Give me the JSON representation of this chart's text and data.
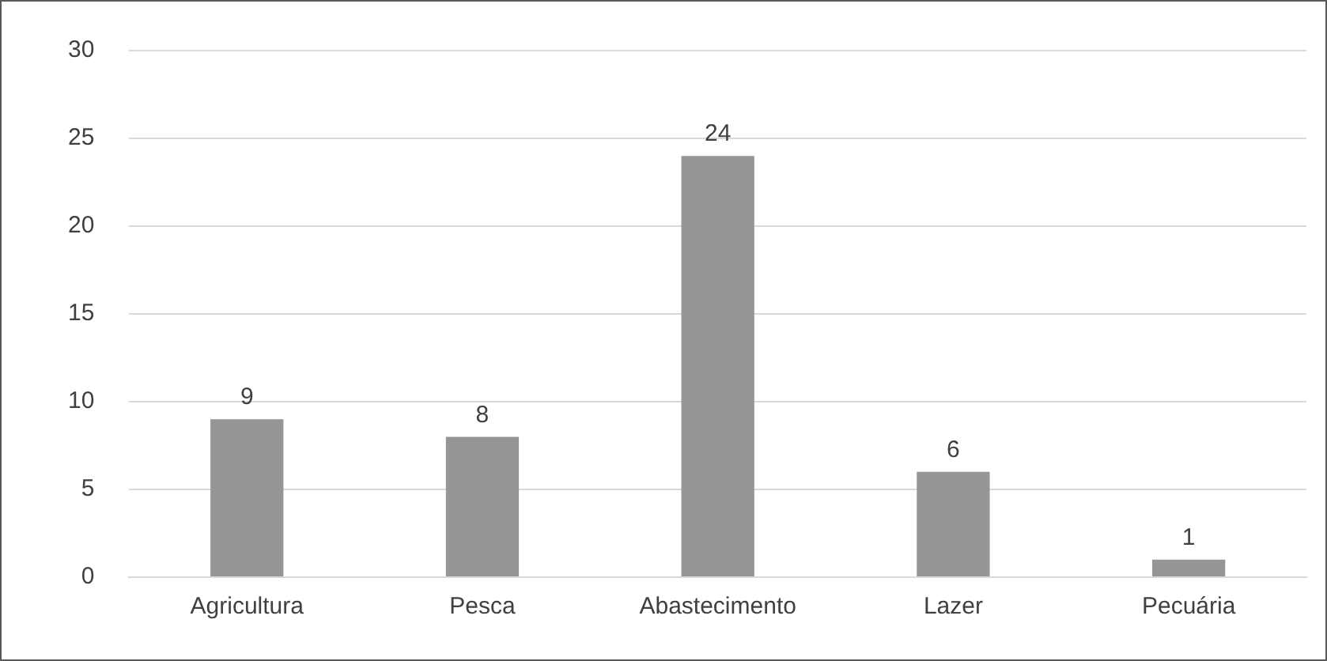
{
  "chart_data": {
    "type": "bar",
    "categories": [
      "Agricultura",
      "Pesca",
      "Abastecimento",
      "Lazer",
      "Pecuária"
    ],
    "values": [
      9,
      8,
      24,
      6,
      1
    ],
    "color": "#969696",
    "ylim": [
      0,
      30
    ],
    "yticks": [
      0,
      5,
      10,
      15,
      20,
      25,
      30
    ],
    "grid": "y",
    "data_labels": true
  }
}
